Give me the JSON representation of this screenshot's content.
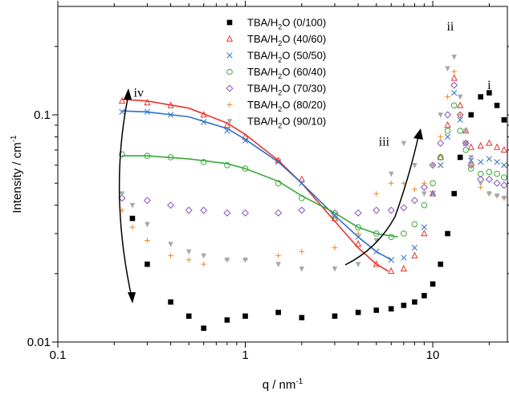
{
  "chart_data": {
    "type": "scatter",
    "title": "",
    "xlabel": "q / nm",
    "xlabel_sup": "-1",
    "ylabel": "Intensity / cm",
    "ylabel_sup": "-1",
    "xscale": "log",
    "yscale": "log",
    "xlim": [
      0.1,
      25
    ],
    "ylim": [
      0.01,
      0.3
    ],
    "xticks": [
      {
        "value": 0.1,
        "label": "0.1"
      },
      {
        "value": 1,
        "label": "1"
      },
      {
        "value": 10,
        "label": "10"
      }
    ],
    "yticks": [
      {
        "value": 0.01,
        "label": "0.01"
      },
      {
        "value": 0.1,
        "label": "0.1"
      }
    ],
    "legend_position": "top-center",
    "series": [
      {
        "name": "TBA/H",
        "sub": "2",
        "tail": "O (0/100)",
        "color": "#000000",
        "marker": "square",
        "points": [
          [
            0.25,
            0.035
          ],
          [
            0.3,
            0.022
          ],
          [
            0.4,
            0.015
          ],
          [
            0.5,
            0.013
          ],
          [
            0.6,
            0.0115
          ],
          [
            0.8,
            0.0125
          ],
          [
            1,
            0.013
          ],
          [
            1.5,
            0.0135
          ],
          [
            2,
            0.0128
          ],
          [
            3,
            0.013
          ],
          [
            4,
            0.0135
          ],
          [
            5,
            0.0138
          ],
          [
            6,
            0.014
          ],
          [
            7,
            0.0145
          ],
          [
            8,
            0.015
          ],
          [
            9,
            0.016
          ],
          [
            10,
            0.018
          ],
          [
            11,
            0.022
          ],
          [
            12,
            0.03
          ],
          [
            13,
            0.045
          ],
          [
            14,
            0.065
          ],
          [
            16,
            0.1
          ],
          [
            18,
            0.12
          ],
          [
            20,
            0.125
          ],
          [
            22,
            0.11
          ],
          [
            24,
            0.095
          ]
        ]
      },
      {
        "name": "TBA/H",
        "sub": "2",
        "tail": "O (40/60)",
        "color": "#e8322a",
        "marker": "triangle",
        "points": [
          [
            0.22,
            0.115
          ],
          [
            0.3,
            0.113
          ],
          [
            0.4,
            0.11
          ],
          [
            0.6,
            0.1
          ],
          [
            0.8,
            0.09
          ],
          [
            1,
            0.08
          ],
          [
            1.5,
            0.063
          ],
          [
            2,
            0.052
          ],
          [
            3,
            0.035
          ],
          [
            4,
            0.027
          ],
          [
            5,
            0.022
          ],
          [
            6,
            0.0205
          ],
          [
            7,
            0.021
          ],
          [
            8,
            0.024
          ],
          [
            9,
            0.03
          ],
          [
            10,
            0.045
          ],
          [
            11,
            0.065
          ],
          [
            12,
            0.09
          ],
          [
            13,
            0.145
          ],
          [
            14,
            0.11
          ],
          [
            15,
            0.085
          ],
          [
            16,
            0.072
          ],
          [
            18,
            0.073
          ],
          [
            20,
            0.075
          ],
          [
            22,
            0.072
          ],
          [
            24,
            0.07
          ]
        ]
      },
      {
        "name": "TBA/H",
        "sub": "2",
        "tail": "O (50/50)",
        "color": "#2f6fc9",
        "marker": "cross",
        "points": [
          [
            0.22,
            0.103
          ],
          [
            0.3,
            0.103
          ],
          [
            0.4,
            0.1
          ],
          [
            0.6,
            0.093
          ],
          [
            0.8,
            0.085
          ],
          [
            1,
            0.077
          ],
          [
            1.5,
            0.062
          ],
          [
            2,
            0.05
          ],
          [
            3,
            0.036
          ],
          [
            4,
            0.029
          ],
          [
            5,
            0.025
          ],
          [
            6,
            0.023
          ],
          [
            7,
            0.0235
          ],
          [
            8,
            0.026
          ],
          [
            9,
            0.032
          ],
          [
            10,
            0.045
          ],
          [
            11,
            0.06
          ],
          [
            12,
            0.08
          ],
          [
            13,
            0.125
          ],
          [
            14,
            0.095
          ],
          [
            15,
            0.075
          ],
          [
            16,
            0.063
          ],
          [
            18,
            0.062
          ],
          [
            20,
            0.064
          ],
          [
            22,
            0.062
          ],
          [
            24,
            0.06
          ]
        ]
      },
      {
        "name": "TBA/H",
        "sub": "2",
        "tail": "O (60/40)",
        "color": "#3aa83a",
        "marker": "circle",
        "points": [
          [
            0.22,
            0.067
          ],
          [
            0.3,
            0.066
          ],
          [
            0.4,
            0.065
          ],
          [
            0.6,
            0.062
          ],
          [
            0.8,
            0.06
          ],
          [
            1,
            0.058
          ],
          [
            1.5,
            0.05
          ],
          [
            2,
            0.043
          ],
          [
            3,
            0.036
          ],
          [
            4,
            0.032
          ],
          [
            5,
            0.03
          ],
          [
            6,
            0.029
          ],
          [
            7,
            0.03
          ],
          [
            8,
            0.033
          ],
          [
            9,
            0.04
          ],
          [
            10,
            0.05
          ],
          [
            11,
            0.065
          ],
          [
            12,
            0.085
          ],
          [
            13,
            0.11
          ],
          [
            14,
            0.085
          ],
          [
            15,
            0.07
          ],
          [
            16,
            0.058
          ],
          [
            18,
            0.055
          ],
          [
            20,
            0.056
          ],
          [
            22,
            0.055
          ],
          [
            24,
            0.053
          ]
        ]
      },
      {
        "name": "TBA/H",
        "sub": "2",
        "tail": "O (70/30)",
        "color": "#8a4fc0",
        "marker": "diamond",
        "points": [
          [
            0.22,
            0.043
          ],
          [
            0.3,
            0.042
          ],
          [
            0.4,
            0.04
          ],
          [
            0.5,
            0.038
          ],
          [
            0.6,
            0.038
          ],
          [
            0.8,
            0.037
          ],
          [
            1,
            0.037
          ],
          [
            1.5,
            0.037
          ],
          [
            2,
            0.038
          ],
          [
            3,
            0.037
          ],
          [
            4,
            0.037
          ],
          [
            5,
            0.038
          ],
          [
            6,
            0.038
          ],
          [
            7,
            0.039
          ],
          [
            8,
            0.042
          ],
          [
            9,
            0.048
          ],
          [
            10,
            0.06
          ],
          [
            11,
            0.075
          ],
          [
            12,
            0.1
          ],
          [
            13,
            0.135
          ],
          [
            14,
            0.1
          ],
          [
            15,
            0.075
          ],
          [
            16,
            0.06
          ],
          [
            18,
            0.052
          ],
          [
            20,
            0.052
          ],
          [
            22,
            0.05
          ],
          [
            24,
            0.049
          ]
        ]
      },
      {
        "name": "TBA/H",
        "sub": "2",
        "tail": "O (80/20)",
        "color": "#f08a1c",
        "marker": "plus",
        "points": [
          [
            0.22,
            0.038
          ],
          [
            0.25,
            0.032
          ],
          [
            0.3,
            0.028
          ],
          [
            0.4,
            0.024
          ],
          [
            0.5,
            0.023
          ],
          [
            0.6,
            0.022
          ],
          [
            0.8,
            0.023
          ],
          [
            1,
            0.023
          ],
          [
            1.5,
            0.024
          ],
          [
            2,
            0.025
          ],
          [
            3,
            0.026
          ],
          [
            4,
            0.03
          ],
          [
            5,
            0.045
          ],
          [
            6,
            0.05
          ],
          [
            7,
            0.05
          ],
          [
            8,
            0.047
          ],
          [
            9,
            0.05
          ],
          [
            10,
            0.06
          ],
          [
            11,
            0.08
          ],
          [
            12,
            0.12
          ],
          [
            13,
            0.155
          ],
          [
            14,
            0.1
          ],
          [
            15,
            0.075
          ],
          [
            16,
            0.06
          ],
          [
            18,
            0.048
          ],
          [
            20,
            0.045
          ],
          [
            22,
            0.044
          ],
          [
            24,
            0.043
          ]
        ]
      },
      {
        "name": "TBA/H",
        "sub": "2",
        "tail": "O (90/10)",
        "color": "#a8a8a8",
        "marker": "triangle-down",
        "points": [
          [
            0.22,
            0.045
          ],
          [
            0.25,
            0.04
          ],
          [
            0.3,
            0.033
          ],
          [
            0.4,
            0.027
          ],
          [
            0.5,
            0.025
          ],
          [
            0.6,
            0.024
          ],
          [
            0.8,
            0.023
          ],
          [
            1,
            0.023
          ],
          [
            1.5,
            0.022
          ],
          [
            2,
            0.021
          ],
          [
            3,
            0.021
          ],
          [
            4,
            0.022
          ],
          [
            5,
            0.028
          ],
          [
            6,
            0.055
          ],
          [
            7,
            0.075
          ],
          [
            8,
            0.06
          ],
          [
            9,
            0.045
          ],
          [
            10,
            0.06
          ],
          [
            11,
            0.1
          ],
          [
            12,
            0.16
          ],
          [
            13,
            0.18
          ],
          [
            14,
            0.12
          ],
          [
            15,
            0.085
          ],
          [
            16,
            0.065
          ],
          [
            18,
            0.05
          ],
          [
            20,
            0.045
          ],
          [
            22,
            0.044
          ],
          [
            24,
            0.043
          ]
        ]
      }
    ],
    "fit_curves": [
      {
        "color": "#e8322a",
        "points": [
          [
            0.22,
            0.117
          ],
          [
            0.3,
            0.115
          ],
          [
            0.5,
            0.107
          ],
          [
            0.8,
            0.092
          ],
          [
            1,
            0.082
          ],
          [
            1.5,
            0.063
          ],
          [
            2,
            0.05
          ],
          [
            3,
            0.034
          ],
          [
            4,
            0.026
          ],
          [
            5,
            0.022
          ],
          [
            5.8,
            0.0205
          ]
        ]
      },
      {
        "color": "#2f6fc9",
        "points": [
          [
            0.22,
            0.104
          ],
          [
            0.3,
            0.103
          ],
          [
            0.5,
            0.098
          ],
          [
            0.8,
            0.087
          ],
          [
            1,
            0.078
          ],
          [
            1.5,
            0.062
          ],
          [
            2,
            0.05
          ],
          [
            3,
            0.036
          ],
          [
            4,
            0.029
          ],
          [
            5,
            0.025
          ],
          [
            6,
            0.023
          ]
        ]
      },
      {
        "color": "#3aa83a",
        "points": [
          [
            0.22,
            0.066
          ],
          [
            0.3,
            0.066
          ],
          [
            0.5,
            0.064
          ],
          [
            0.8,
            0.061
          ],
          [
            1,
            0.058
          ],
          [
            1.5,
            0.051
          ],
          [
            2,
            0.044
          ],
          [
            3,
            0.037
          ],
          [
            4,
            0.032
          ],
          [
            5,
            0.03
          ],
          [
            6.5,
            0.029
          ]
        ]
      }
    ],
    "annotations": [
      {
        "text": "iv",
        "x": 0.27,
        "y": 0.12
      },
      {
        "text": "iii",
        "x": 5.5,
        "y": 0.073
      },
      {
        "text": "ii",
        "x": 12.4,
        "y": 0.235
      },
      {
        "text": "i",
        "x": 20,
        "y": 0.13
      }
    ]
  }
}
